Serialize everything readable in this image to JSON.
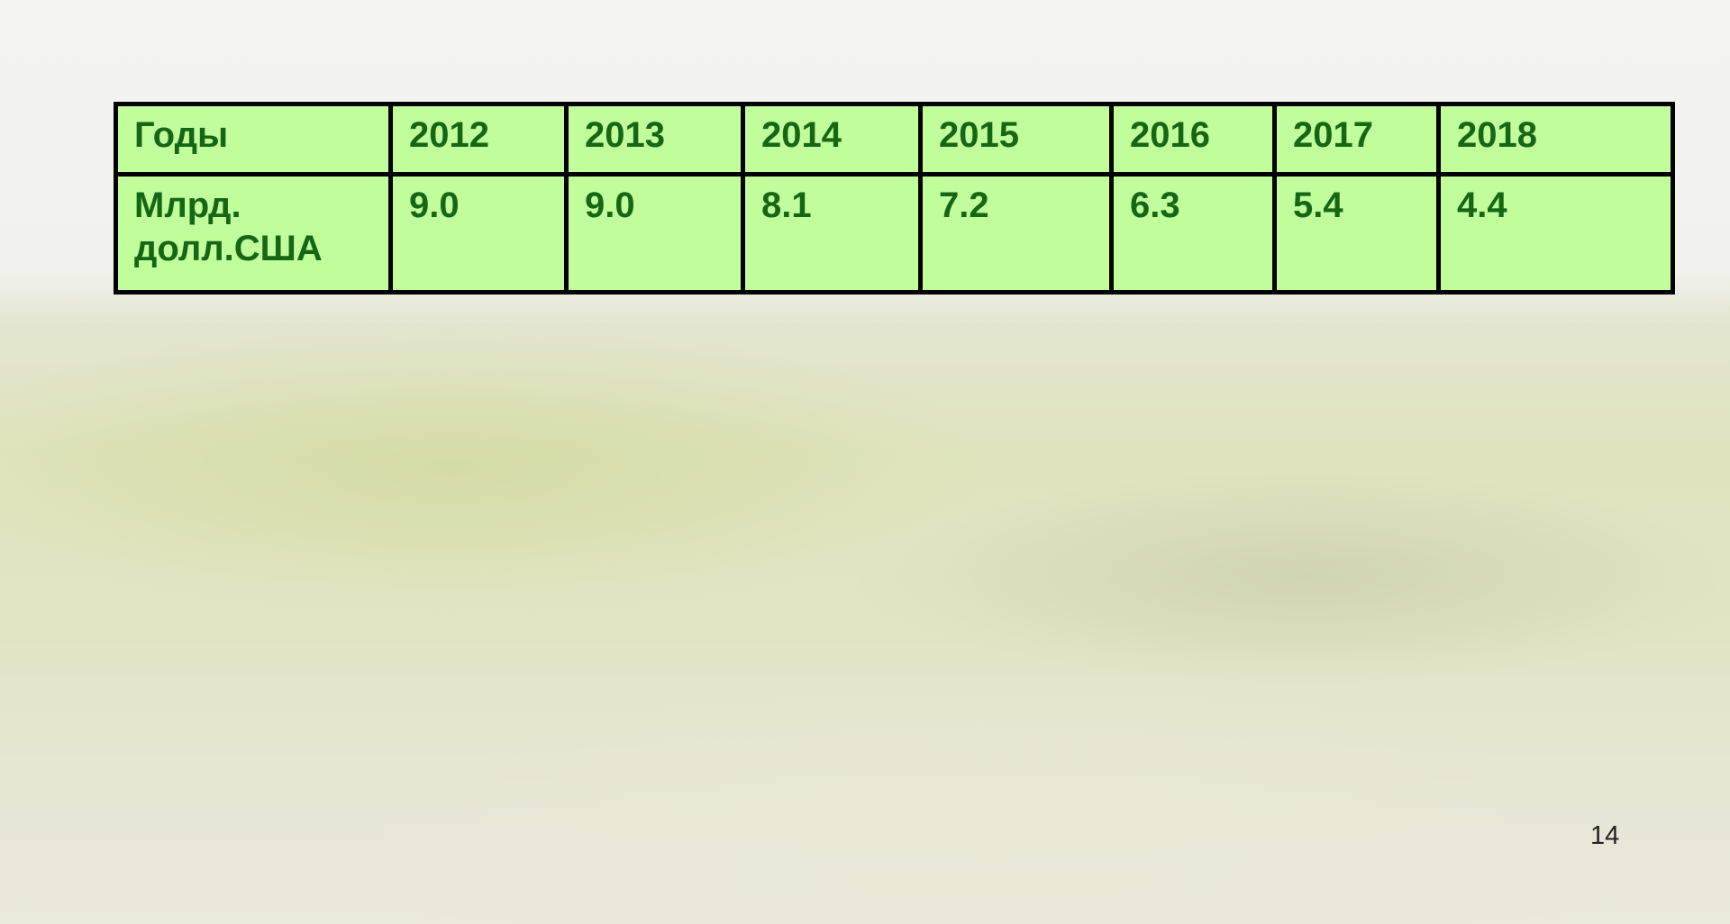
{
  "table": {
    "header": [
      "Годы",
      "2012",
      "2013",
      "2014",
      "2015",
      "2016",
      "2017",
      "2018"
    ],
    "rows": [
      [
        "Млрд. долл.США",
        "9.0",
        "9.0",
        "8.1",
        "7.2",
        "6.3",
        "5.4",
        "4.4"
      ]
    ]
  },
  "page_number": "14"
}
